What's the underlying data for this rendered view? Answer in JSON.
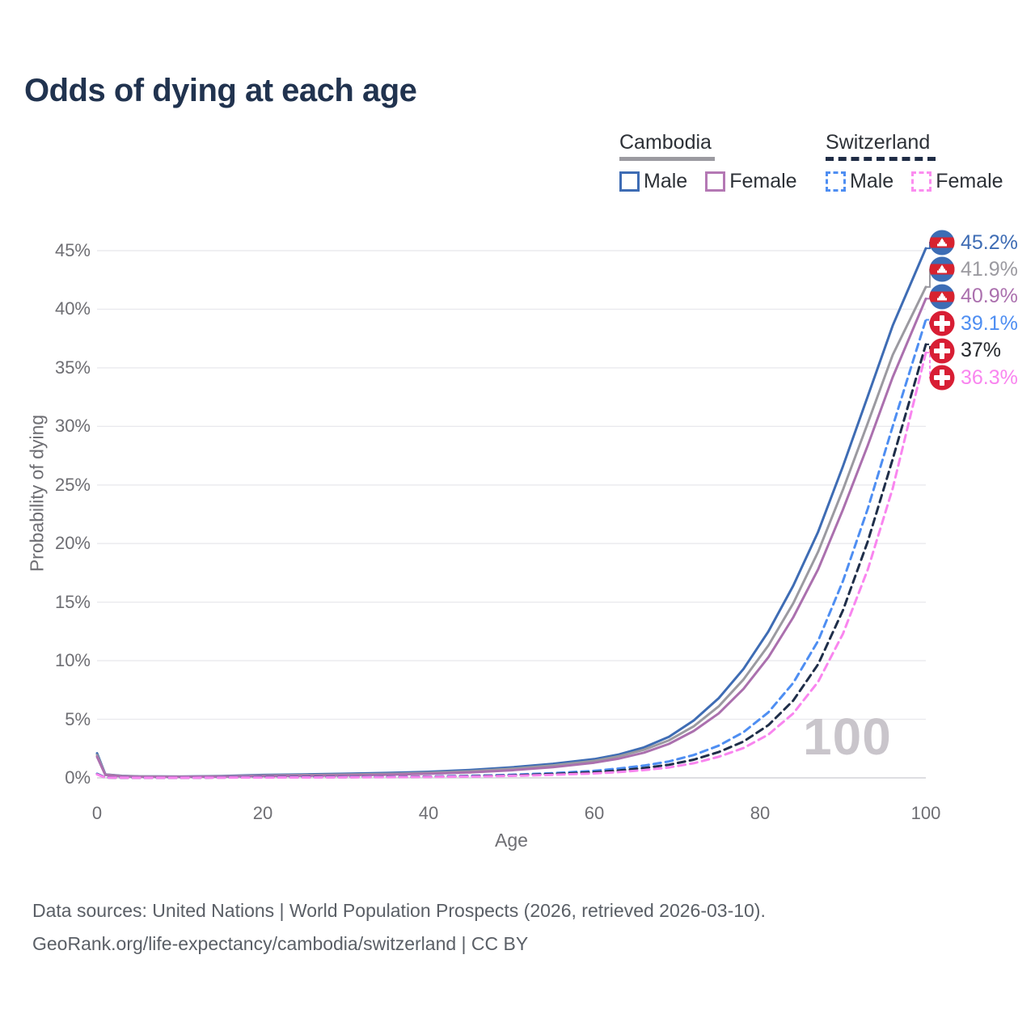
{
  "title": "Odds of dying at each age",
  "legend": {
    "groups": [
      {
        "label": "Cambodia",
        "style": "solid",
        "underline_color": "#9b9aa0",
        "items": [
          {
            "label": "Male",
            "color": "#3e6cb4"
          },
          {
            "label": "Female",
            "color": "#b478b4"
          }
        ]
      },
      {
        "label": "Switzerland",
        "style": "dashed",
        "underline_color": "#1f2c45",
        "items": [
          {
            "label": "Male",
            "color": "#4e8ef2"
          },
          {
            "label": "Female",
            "color": "#fb8df0"
          }
        ]
      }
    ]
  },
  "chart_data": {
    "type": "line",
    "title": "Odds of dying at each age",
    "xlabel": "Age",
    "ylabel": "Probability of dying",
    "xlim": [
      0,
      100
    ],
    "ylim": [
      0,
      45
    ],
    "grid": "horizontal",
    "legend_position": "top-right",
    "watermark": "100",
    "xticks": [
      0,
      20,
      40,
      60,
      80,
      100
    ],
    "xtick_labels": [
      "0",
      "20",
      "40",
      "60",
      "80",
      "100"
    ],
    "yticks": [
      0,
      5,
      10,
      15,
      20,
      25,
      30,
      35,
      40,
      45
    ],
    "ytick_labels": [
      "0%",
      "5%",
      "10%",
      "15%",
      "20%",
      "25%",
      "30%",
      "35%",
      "40%",
      "45%"
    ],
    "x": [
      0,
      1,
      3,
      5,
      10,
      15,
      20,
      25,
      30,
      35,
      40,
      45,
      50,
      55,
      60,
      63,
      66,
      69,
      72,
      75,
      78,
      81,
      84,
      87,
      90,
      93,
      96,
      100
    ],
    "series": [
      {
        "name": "Cambodia Male",
        "country": "Cambodia",
        "flag": "kh",
        "color": "#3e6cb4",
        "dashed": false,
        "end_label": "45.2%",
        "values": [
          2.1,
          0.3,
          0.17,
          0.13,
          0.11,
          0.16,
          0.25,
          0.3,
          0.35,
          0.42,
          0.52,
          0.67,
          0.9,
          1.2,
          1.6,
          2.0,
          2.6,
          3.5,
          4.9,
          6.8,
          9.3,
          12.5,
          16.4,
          21.0,
          26.6,
          32.6,
          38.6,
          45.2
        ]
      },
      {
        "name": "Cambodia Both",
        "country": "Cambodia",
        "flag": "kh",
        "color": "#9b9aa0",
        "dashed": false,
        "end_label": "41.9%",
        "values": [
          1.95,
          0.28,
          0.15,
          0.12,
          0.1,
          0.13,
          0.2,
          0.24,
          0.28,
          0.34,
          0.43,
          0.56,
          0.77,
          1.06,
          1.45,
          1.85,
          2.4,
          3.2,
          4.4,
          6.1,
          8.4,
          11.3,
          14.9,
          19.3,
          24.6,
          30.3,
          36.1,
          41.9
        ]
      },
      {
        "name": "Cambodia Female",
        "country": "Cambodia",
        "flag": "kh",
        "color": "#ab70ae",
        "dashed": false,
        "end_label": "40.9%",
        "values": [
          1.8,
          0.25,
          0.13,
          0.1,
          0.09,
          0.11,
          0.15,
          0.18,
          0.21,
          0.27,
          0.35,
          0.47,
          0.65,
          0.92,
          1.3,
          1.65,
          2.15,
          2.9,
          4.0,
          5.5,
          7.6,
          10.3,
          13.7,
          17.8,
          22.9,
          28.4,
          34.2,
          40.9
        ]
      },
      {
        "name": "Switzerland Male",
        "country": "Switzerland",
        "flag": "ch",
        "color": "#4e8ef2",
        "dashed": true,
        "end_label": "39.1%",
        "values": [
          0.35,
          0.03,
          0.02,
          0.01,
          0.01,
          0.04,
          0.07,
          0.07,
          0.08,
          0.09,
          0.12,
          0.17,
          0.26,
          0.4,
          0.6,
          0.8,
          1.05,
          1.4,
          1.95,
          2.75,
          3.9,
          5.6,
          8.1,
          11.7,
          16.8,
          23.0,
          30.0,
          39.1
        ]
      },
      {
        "name": "Switzerland Both",
        "country": "Switzerland",
        "flag": "ch",
        "color": "#1f2e49",
        "dashed": true,
        "end_label": "37%",
        "label_color": "#26292e",
        "values": [
          0.32,
          0.025,
          0.015,
          0.01,
          0.01,
          0.03,
          0.05,
          0.055,
          0.065,
          0.075,
          0.1,
          0.14,
          0.21,
          0.33,
          0.48,
          0.63,
          0.84,
          1.12,
          1.55,
          2.2,
          3.1,
          4.5,
          6.6,
          9.7,
          14.3,
          20.2,
          27.2,
          37.0
        ]
      },
      {
        "name": "Switzerland Female",
        "country": "Switzerland",
        "flag": "ch",
        "color": "#f985ef",
        "dashed": true,
        "end_label": "36.3%",
        "values": [
          0.3,
          0.02,
          0.012,
          0.008,
          0.008,
          0.02,
          0.03,
          0.035,
          0.045,
          0.06,
          0.08,
          0.11,
          0.17,
          0.26,
          0.38,
          0.5,
          0.66,
          0.89,
          1.25,
          1.8,
          2.55,
          3.7,
          5.5,
          8.2,
          12.3,
          17.8,
          24.7,
          36.3
        ]
      }
    ]
  },
  "footer": {
    "line1": "Data sources: United Nations | World Population Prospects (2026, retrieved 2026-03-10).",
    "line2": "GeoRank.org/life-expectancy/cambodia/switzerland | CC BY"
  }
}
